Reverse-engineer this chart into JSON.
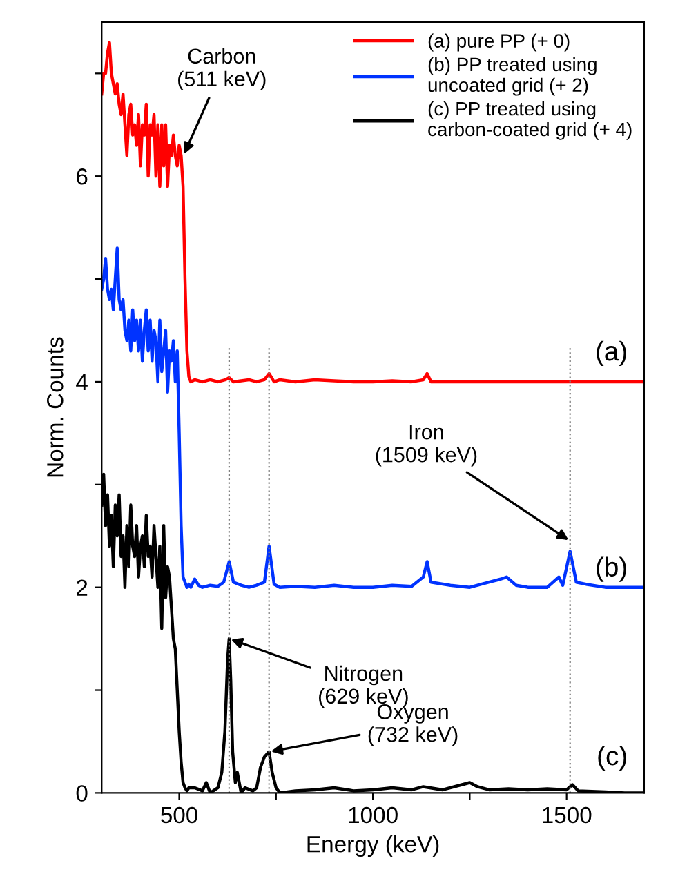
{
  "chart_data": {
    "type": "line",
    "xlabel": "Energy (keV)",
    "ylabel": "Norm. Counts",
    "xlim": [
      300,
      1700
    ],
    "ylim": [
      0,
      7.5
    ],
    "xticks": [
      500,
      {
        "value": 750,
        "label": null
      },
      1000,
      {
        "value": 1250,
        "label": null
      },
      1500
    ],
    "yticks": [
      0,
      {
        "value": 1,
        "label": null
      },
      2,
      {
        "value": 3,
        "label": null
      },
      4,
      {
        "value": 5,
        "label": null
      },
      6,
      {
        "value": 7,
        "label": null
      }
    ],
    "grid": false,
    "legend": "top right",
    "marker": "none",
    "line_style": "solid",
    "series": [
      {
        "name": "(a) pure PP (+ 0)",
        "color": "#ff0000",
        "x": [
          300,
          305,
          310,
          315,
          320,
          325,
          330,
          335,
          340,
          345,
          350,
          355,
          360,
          365,
          370,
          375,
          380,
          385,
          390,
          395,
          400,
          405,
          410,
          415,
          420,
          425,
          430,
          435,
          440,
          445,
          450,
          455,
          460,
          465,
          470,
          475,
          480,
          485,
          490,
          495,
          500,
          505,
          510,
          515,
          520,
          525,
          530,
          540,
          560,
          580,
          600,
          620,
          629,
          640,
          660,
          680,
          700,
          720,
          732,
          745,
          760,
          800,
          850,
          900,
          950,
          1000,
          1050,
          1100,
          1130,
          1140,
          1150,
          1200,
          1300,
          1400,
          1500,
          1600,
          1700
        ],
        "values": [
          6.8,
          7.0,
          7.0,
          7.2,
          7.3,
          7.0,
          6.9,
          6.8,
          6.9,
          6.7,
          6.6,
          6.8,
          6.5,
          6.2,
          6.6,
          6.7,
          6.4,
          6.5,
          6.3,
          6.6,
          6.1,
          6.5,
          6.4,
          6.7,
          6.0,
          6.5,
          6.4,
          6.6,
          6.0,
          6.5,
          5.9,
          6.5,
          6.1,
          6.5,
          5.9,
          6.3,
          6.2,
          6.4,
          6.2,
          6.1,
          6.3,
          6.2,
          5.9,
          5.0,
          4.3,
          4.05,
          4.0,
          4.02,
          4.0,
          4.02,
          4.0,
          4.02,
          4.04,
          4.0,
          4.01,
          4.02,
          4.0,
          4.02,
          4.08,
          4.0,
          4.02,
          4.0,
          4.02,
          4.01,
          4.0,
          4.0,
          4.01,
          4.0,
          4.02,
          4.08,
          4.0,
          4.0,
          4.0,
          4.0,
          4.0,
          4.0,
          4.0
        ]
      },
      {
        "name": "(b) PP treated using\nuncoated grid (+ 2)",
        "color": "#0033ff",
        "x": [
          300,
          305,
          310,
          315,
          320,
          325,
          330,
          335,
          340,
          345,
          350,
          355,
          360,
          365,
          370,
          375,
          380,
          385,
          390,
          395,
          400,
          405,
          410,
          415,
          420,
          425,
          430,
          435,
          440,
          445,
          450,
          455,
          460,
          465,
          470,
          475,
          480,
          485,
          490,
          495,
          500,
          505,
          510,
          515,
          520,
          525,
          530,
          540,
          550,
          560,
          580,
          600,
          615,
          629,
          640,
          660,
          680,
          700,
          720,
          732,
          745,
          760,
          800,
          850,
          900,
          950,
          1000,
          1050,
          1100,
          1130,
          1140,
          1150,
          1200,
          1250,
          1300,
          1330,
          1345,
          1370,
          1400,
          1450,
          1480,
          1490,
          1509,
          1525,
          1550,
          1600,
          1650,
          1700
        ],
        "values": [
          4.9,
          5.0,
          5.2,
          4.9,
          4.8,
          4.9,
          4.7,
          5.0,
          5.3,
          4.8,
          4.7,
          4.8,
          4.5,
          4.4,
          4.6,
          4.3,
          4.7,
          4.4,
          4.6,
          4.3,
          4.6,
          4.2,
          4.5,
          4.7,
          4.3,
          4.6,
          4.2,
          4.5,
          4.4,
          4.0,
          4.6,
          4.1,
          4.3,
          4.5,
          3.9,
          4.3,
          4.2,
          4.4,
          4.0,
          4.3,
          3.5,
          2.6,
          2.1,
          2.05,
          2.0,
          2.03,
          2.0,
          2.08,
          2.02,
          2.0,
          2.02,
          2.01,
          2.05,
          2.25,
          2.05,
          2.02,
          2.0,
          2.02,
          2.05,
          2.4,
          2.03,
          2.0,
          2.01,
          2.0,
          2.02,
          2.0,
          2.0,
          2.02,
          2.01,
          2.1,
          2.25,
          2.05,
          2.02,
          2.0,
          2.05,
          2.08,
          2.1,
          2.02,
          2.0,
          2.0,
          2.1,
          2.02,
          2.35,
          2.05,
          2.03,
          2.0,
          2.0,
          2.0
        ]
      },
      {
        "name": "(c) PP treated using\ncarbon-coated grid (+ 4)",
        "color": "#000000",
        "x": [
          300,
          305,
          310,
          315,
          320,
          325,
          330,
          335,
          340,
          345,
          350,
          355,
          360,
          365,
          370,
          375,
          380,
          385,
          390,
          395,
          400,
          405,
          410,
          415,
          420,
          425,
          430,
          435,
          440,
          445,
          450,
          455,
          460,
          465,
          470,
          475,
          480,
          485,
          490,
          495,
          500,
          505,
          510,
          515,
          520,
          525,
          540,
          560,
          570,
          580,
          600,
          610,
          618,
          625,
          629,
          633,
          638,
          645,
          650,
          660,
          670,
          690,
          700,
          710,
          720,
          732,
          740,
          750,
          760,
          800,
          850,
          900,
          950,
          1000,
          1050,
          1100,
          1130,
          1180,
          1230,
          1250,
          1270,
          1300,
          1350,
          1400,
          1450,
          1500,
          1515,
          1530,
          1600,
          1650,
          1700
        ],
        "values": [
          2.8,
          3.1,
          2.6,
          2.9,
          2.4,
          2.7,
          2.2,
          2.8,
          2.5,
          2.9,
          2.3,
          2.5,
          2.0,
          2.6,
          2.2,
          2.8,
          2.4,
          2.3,
          2.6,
          2.1,
          2.4,
          2.5,
          2.2,
          2.7,
          2.3,
          2.4,
          2.1,
          2.6,
          2.3,
          2.0,
          2.4,
          1.6,
          2.6,
          1.9,
          2.2,
          2.1,
          1.8,
          1.5,
          1.4,
          1.0,
          0.6,
          0.3,
          0.1,
          0.05,
          0.02,
          0.05,
          0.05,
          0.02,
          0.1,
          0.0,
          0.05,
          0.2,
          0.6,
          1.3,
          1.5,
          1.1,
          0.4,
          0.1,
          0.2,
          0.0,
          0.05,
          0.02,
          0.05,
          0.25,
          0.35,
          0.4,
          0.2,
          0.05,
          0.0,
          0.02,
          0.03,
          0.05,
          0.02,
          0.03,
          0.05,
          0.03,
          0.06,
          0.03,
          0.08,
          0.1,
          0.06,
          0.03,
          0.04,
          0.03,
          0.04,
          0.03,
          0.08,
          0.02,
          0.01,
          0.0,
          0.0
        ]
      }
    ],
    "ref_lines": [
      {
        "axis": "x",
        "value": 629,
        "color": "#808080",
        "line_style": "dotted"
      },
      {
        "axis": "x",
        "value": 732,
        "color": "#808080",
        "line_style": "dotted"
      },
      {
        "axis": "x",
        "value": 1509,
        "color": "#808080",
        "line_style": "dotted"
      }
    ],
    "annotations": [
      {
        "text": "Carbon\n(511 keV)",
        "x": 511,
        "y": 6.2
      },
      {
        "text": "Nitrogen\n(629 keV)",
        "x": 629,
        "y": 1.5
      },
      {
        "text": "Oxygen\n(732 keV)",
        "x": 732,
        "y": 0.4
      },
      {
        "text": "Iron\n(1509 keV)",
        "x": 1509,
        "y": 2.45
      },
      "(a)",
      "(b)",
      "(c)"
    ]
  }
}
